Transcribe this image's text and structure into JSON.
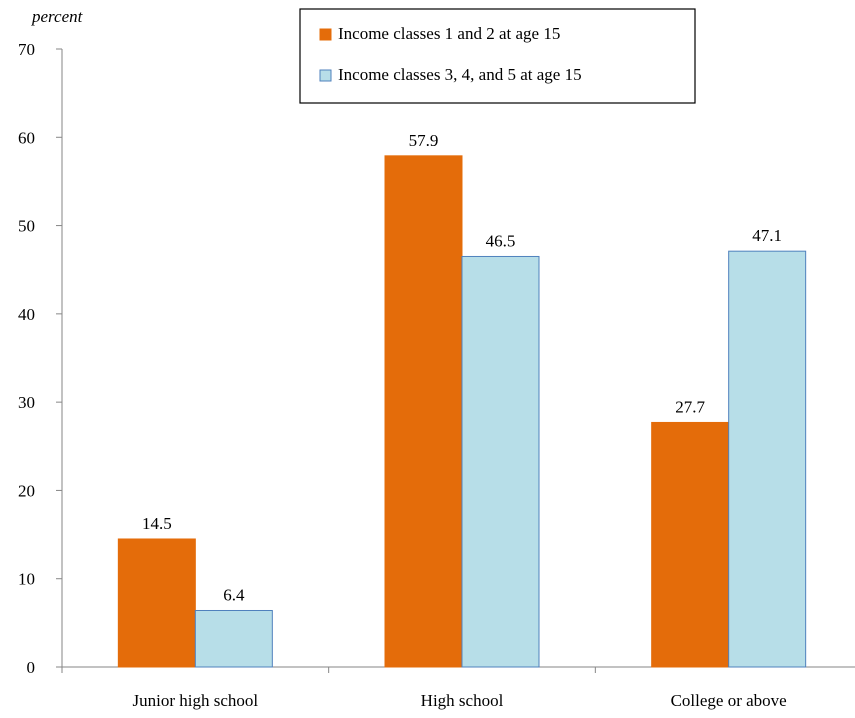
{
  "chart_data": {
    "type": "bar",
    "title": "",
    "xlabel": "",
    "ylabel": "percent",
    "ylim": [
      0,
      70
    ],
    "yticks": [
      0,
      10,
      20,
      30,
      40,
      50,
      60,
      70
    ],
    "grid": false,
    "legend_position": "top-right",
    "categories": [
      "Junior high school",
      "High school",
      "College or above"
    ],
    "series": [
      {
        "name": "Income classes 1 and 2 at age 15",
        "values": [
          14.5,
          57.9,
          27.7
        ],
        "color": "#E46C0A",
        "stroke": "#E46C0A"
      },
      {
        "name": "Income classes 3, 4, and 5 at age 15",
        "values": [
          6.4,
          46.5,
          47.1
        ],
        "color": "#B7DEE8",
        "stroke": "#4F81BD"
      }
    ]
  }
}
